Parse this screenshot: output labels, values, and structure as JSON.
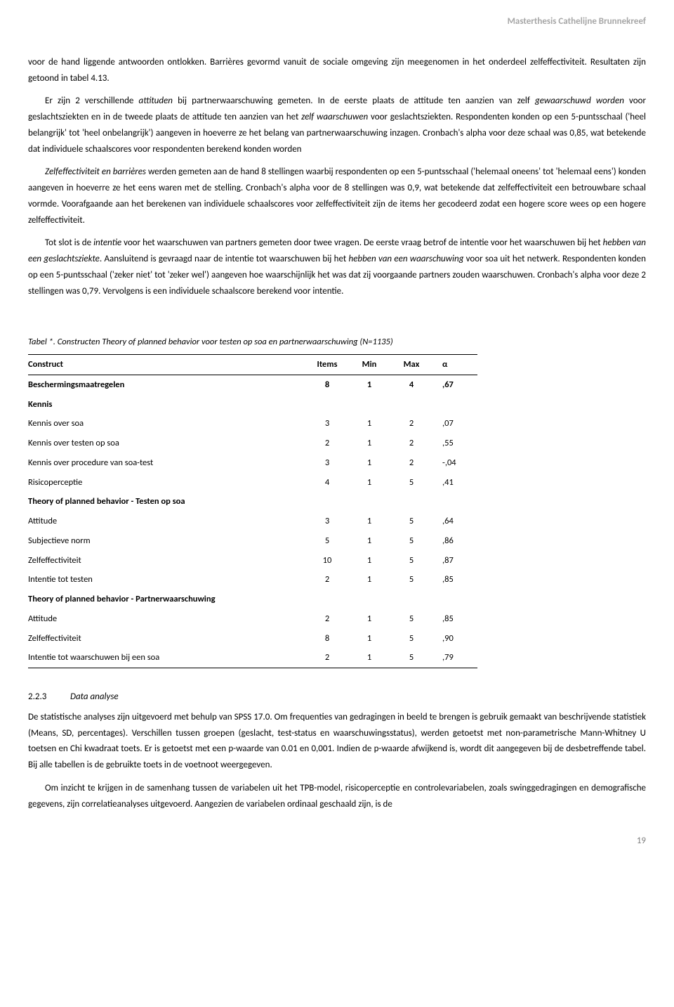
{
  "header": {
    "text": "Masterthesis Cathelijne Brunnekreef"
  },
  "paragraphs": {
    "p1a": "voor de hand liggende antwoorden ontlokken. Barrières gevormd vanuit de sociale omgeving zijn meegenomen in het onderdeel zelfeffectiviteit. Resultaten zijn getoond in tabel 4.13.",
    "p1b": "Er zijn 2 verschillende ",
    "p1b_i1": "attituden",
    "p1b2": " bij partnerwaarschuwing gemeten. In de eerste plaats de attitude ten aanzien van zelf ",
    "p1b_i2": "gewaarschuwd worden",
    "p1b3": " voor geslachtsziekten en in de tweede plaats de attitude ten aanzien van het ",
    "p1b_i3": "zelf waarschuwen",
    "p1b4": " voor geslachtsziekten. Respondenten konden op een 5-puntsschaal ('heel belangrijk' tot 'heel onbelangrijk') aangeven in hoeverre ze het belang van partnerwaarschuwing inzagen. Cronbach's alpha voor deze schaal was 0,85, wat betekende dat individuele schaalscores voor respondenten berekend konden worden",
    "p1c_i1": "Zelfeffectiviteit en barrières",
    "p1c2": " werden gemeten aan de hand 8 stellingen waarbij respondenten op een 5-puntsschaal ('helemaal oneens' tot 'helemaal eens') konden aangeven in hoeverre ze het eens waren met de stelling. Cronbach's alpha voor de 8 stellingen was 0,9, wat betekende dat zelfeffectiviteit een betrouwbare schaal vormde. Voorafgaande aan het berekenen van individuele schaalscores voor zelfeffectiviteit zijn de items her gecodeerd zodat een hogere score wees op een hogere zelfeffectiviteit.",
    "p1d": "Tot slot is de ",
    "p1d_i1": "intentie",
    "p1d2": " voor het waarschuwen van partners gemeten door twee vragen. De eerste vraag betrof de intentie voor het waarschuwen bij het ",
    "p1d_i2": "hebben van een geslachtsziekte",
    "p1d3": ". Aansluitend is gevraagd naar de intentie tot waarschuwen bij het ",
    "p1d_i3": "hebben van een waarschuwing",
    "p1d4": " voor soa uit het netwerk. Respondenten konden op een 5-puntsschaal ('zeker niet' tot 'zeker wel') aangeven hoe waarschijnlijk het was dat zij voorgaande partners zouden waarschuwen. Cronbach's alpha voor deze 2 stellingen was 0,79. Vervolgens is een individuele schaalscore berekend voor intentie."
  },
  "table": {
    "caption": "Tabel *. Constructen Theory of planned behavior voor testen op soa en partnerwaarschuwing  (N=1135)",
    "columns": {
      "c1": "Construct",
      "c2": "Items",
      "c3": "Min",
      "c4": "Max",
      "c5": "α"
    },
    "rows": [
      {
        "label": "Beschermingsmaatregelen",
        "items": "8",
        "min": "1",
        "max": "4",
        "alpha": ",67",
        "bold": true,
        "borderTop": false
      },
      {
        "label": "Kennis",
        "items": "",
        "min": "",
        "max": "",
        "alpha": "",
        "bold": true,
        "borderTop": false
      },
      {
        "label": "Kennis over soa",
        "items": "3",
        "min": "1",
        "max": "2",
        "alpha": ",07",
        "bold": false,
        "borderTop": false
      },
      {
        "label": "Kennis over testen op soa",
        "items": "2",
        "min": "1",
        "max": "2",
        "alpha": ",55",
        "bold": false,
        "borderTop": false
      },
      {
        "label": "Kennis over procedure van soa-test",
        "items": "3",
        "min": "1",
        "max": "2",
        "alpha": "-,04",
        "bold": false,
        "borderTop": false
      },
      {
        "label": "Risicoperceptie",
        "items": "4",
        "min": "1",
        "max": "5",
        "alpha": ",41",
        "bold": false,
        "borderTop": false
      },
      {
        "label": "Theory of planned behavior - Testen op soa",
        "items": "",
        "min": "",
        "max": "",
        "alpha": "",
        "bold": true,
        "borderTop": false
      },
      {
        "label": "Attitude",
        "items": "3",
        "min": "1",
        "max": "5",
        "alpha": ",64",
        "bold": false,
        "borderTop": false
      },
      {
        "label": "Subjectieve norm",
        "items": "5",
        "min": "1",
        "max": "5",
        "alpha": ",86",
        "bold": false,
        "borderTop": false
      },
      {
        "label": "Zelfeffectiviteit",
        "items": "10",
        "min": "1",
        "max": "5",
        "alpha": ",87",
        "bold": false,
        "borderTop": false
      },
      {
        "label": "Intentie tot testen",
        "items": "2",
        "min": "1",
        "max": "5",
        "alpha": ",85",
        "bold": false,
        "borderTop": false
      },
      {
        "label": "Theory of planned behavior - Partnerwaarschuwing",
        "items": "",
        "min": "",
        "max": "",
        "alpha": "",
        "bold": true,
        "borderTop": false
      },
      {
        "label": "Attitude",
        "items": "2",
        "min": "1",
        "max": "5",
        "alpha": ",85",
        "bold": false,
        "borderTop": false
      },
      {
        "label": "Zelfeffectiviteit",
        "items": "8",
        "min": "1",
        "max": "5",
        "alpha": ",90",
        "bold": false,
        "borderTop": false
      },
      {
        "label": "Intentie tot waarschuwen bij een soa",
        "items": "2",
        "min": "1",
        "max": "5",
        "alpha": ",79",
        "bold": false,
        "borderTop": false
      }
    ]
  },
  "section": {
    "number": "2.2.3",
    "title": "Data analyse",
    "p1": "De statistische analyses zijn uitgevoerd met behulp van SPSS 17.0. Om frequenties van gedragingen in beeld te brengen is gebruik gemaakt van beschrijvende statistiek (Means, SD, percentages). Verschillen tussen groepen (geslacht, test-status en waarschuwingsstatus), werden getoetst met non-parametrische Mann-Whitney U toetsen en Chi kwadraat toets. Er is getoetst met een p-waarde van 0.01 en 0,001. Indien de p-waarde afwijkend is, wordt dit aangegeven bij de desbetreffende tabel. Bij alle tabellen is de gebruikte toets in de voetnoot weergegeven.",
    "p2": "Om inzicht te krijgen in de samenhang tussen de variabelen uit het TPB-model, risicoperceptie en controlevariabelen, zoals swinggedragingen en demografische gegevens, zijn correlatieanalyses uitgevoerd. Aangezien de variabelen ordinaal geschaald zijn, is de"
  },
  "pageNumber": "19"
}
